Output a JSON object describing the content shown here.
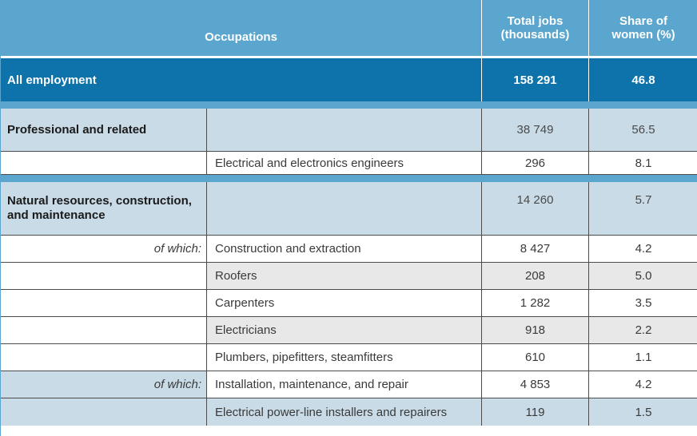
{
  "header": {
    "occupations": "Occupations",
    "total_jobs": "Total jobs (thousands)",
    "share_women": "Share of women (%)"
  },
  "all_employment": {
    "label": "All employment",
    "total_jobs": "158 291",
    "share_women": "46.8"
  },
  "professional": {
    "label": "Professional and related",
    "total_jobs": "38 749",
    "share_women": "56.5",
    "rows": [
      {
        "occupation": "Electrical and electronics engineers",
        "total_jobs": "296",
        "share_women": "8.1"
      }
    ]
  },
  "natural": {
    "label": "Natural resources, construction, and maintenance",
    "total_jobs": "14 260",
    "share_women": "5.7",
    "of_which_1": "of which:",
    "of_which_2": "of which:",
    "rows": [
      {
        "occupation": "Construction and extraction",
        "total_jobs": "8 427",
        "share_women": "4.2"
      },
      {
        "occupation": "Roofers",
        "total_jobs": "208",
        "share_women": "5.0"
      },
      {
        "occupation": "Carpenters",
        "total_jobs": "1 282",
        "share_women": "3.5"
      },
      {
        "occupation": "Electricians",
        "total_jobs": "918",
        "share_women": "2.2"
      },
      {
        "occupation": "Plumbers, pipefitters, steamfitters",
        "total_jobs": "610",
        "share_women": "1.1"
      },
      {
        "occupation": "Installation, maintenance, and repair",
        "total_jobs": "4 853",
        "share_women": "4.2"
      },
      {
        "occupation": "Electrical power-line installers and repairers",
        "total_jobs": "119",
        "share_women": "1.5"
      }
    ]
  }
}
